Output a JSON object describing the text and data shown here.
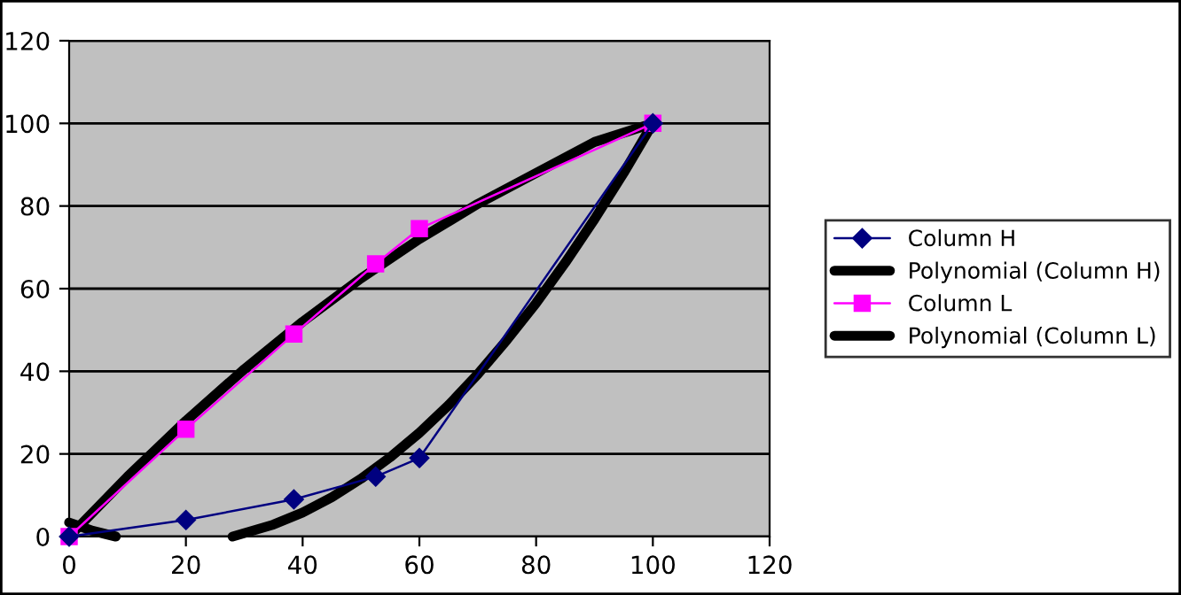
{
  "chart_data": {
    "type": "line",
    "xlim": [
      0,
      120
    ],
    "xticks": [
      0,
      20,
      40,
      60,
      80,
      100,
      120
    ],
    "ylim": [
      0,
      120
    ],
    "yticks": [
      0,
      20,
      40,
      60,
      80,
      100,
      120
    ],
    "grid": "y",
    "legend": "right",
    "series": [
      {
        "name": "Column H",
        "color": "#000080",
        "marker": "diamond",
        "x": [
          0,
          20,
          38.5,
          52.5,
          60,
          100
        ],
        "values": [
          0,
          4,
          9,
          14.5,
          19,
          100
        ]
      },
      {
        "name": "Polynomial (Column H)",
        "color": "#000000",
        "marker": "none",
        "x": [
          0,
          2,
          4,
          6,
          8,
          18,
          28,
          35,
          40,
          45,
          50,
          55,
          60,
          65,
          70,
          75,
          80,
          85,
          90,
          95,
          100
        ],
        "values": [
          3.4,
          2.4,
          1.4,
          0.7,
          0,
          null,
          0,
          2.9,
          5.8,
          9.5,
          14,
          19.2,
          25.1,
          31.8,
          39.3,
          47.6,
          56.5,
          66.3,
          76.8,
          88,
          100
        ]
      },
      {
        "name": "Column L",
        "color": "#ff00ff",
        "marker": "square",
        "x": [
          0,
          20,
          38.5,
          52.5,
          60,
          100
        ],
        "values": [
          0,
          26,
          49,
          66,
          74.5,
          100
        ]
      },
      {
        "name": "Polynomial (Column L)",
        "color": "#000000",
        "marker": "none",
        "x": [
          0,
          10,
          20,
          30,
          40,
          50,
          60,
          70,
          80,
          90,
          100
        ],
        "values": [
          0,
          14.5,
          28,
          40.5,
          52,
          62.5,
          72,
          80.5,
          88,
          95.5,
          100
        ]
      }
    ]
  }
}
